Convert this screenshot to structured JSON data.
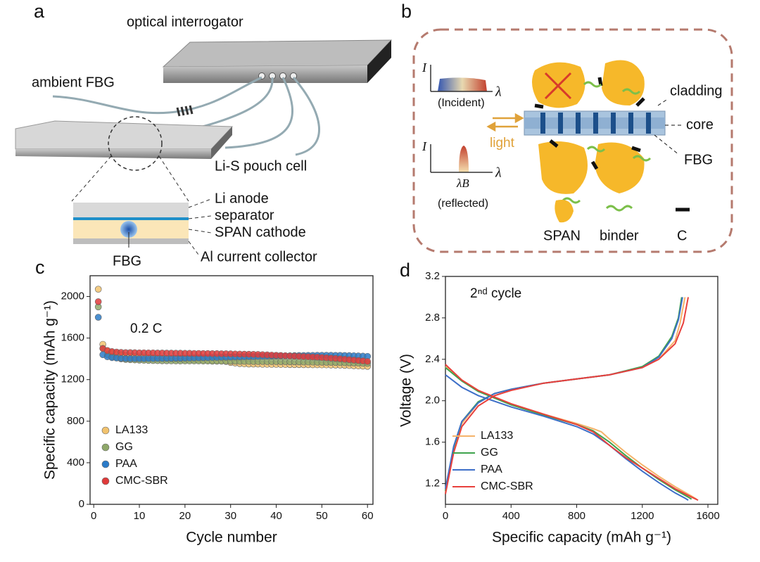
{
  "panel_a": {
    "label": "a",
    "interrogator": "optical interrogator",
    "ambient_fbg": "ambient FBG",
    "cell": "Li-S pouch cell",
    "layers": [
      "Li anode",
      "separator",
      "SPAN cathode",
      "Al current collector"
    ],
    "fbg": "FBG"
  },
  "panel_b": {
    "label": "b",
    "axis_i": "I",
    "axis_lambda": "λ",
    "incident": "(Incident)",
    "lambda_b": "λB",
    "reflected": "(reflected)",
    "light": "light",
    "cladding": "cladding",
    "core": "core",
    "fbg": "FBG",
    "legend": [
      "SPAN",
      "binder",
      "C"
    ]
  },
  "chart_data": [
    {
      "type": "scatter",
      "panel_label": "c",
      "annotation": "0.2 C",
      "x_label": "Cycle number",
      "y_label": "Specific capacity (mAh g⁻¹)",
      "xlim": [
        -0.8,
        61.2
      ],
      "ylim": [
        0,
        2200
      ],
      "xticks": [
        0,
        10,
        20,
        30,
        40,
        50,
        60
      ],
      "yticks": [
        0,
        400,
        800,
        1200,
        1600,
        2000
      ],
      "x": [
        1,
        2,
        3,
        4,
        5,
        6,
        7,
        8,
        9,
        10,
        11,
        12,
        13,
        14,
        15,
        16,
        17,
        18,
        19,
        20,
        21,
        22,
        23,
        24,
        25,
        26,
        27,
        28,
        29,
        30,
        31,
        32,
        33,
        34,
        35,
        36,
        37,
        38,
        39,
        40,
        41,
        42,
        43,
        44,
        45,
        46,
        47,
        48,
        49,
        50,
        51,
        52,
        53,
        54,
        55,
        56,
        57,
        58,
        59,
        60
      ],
      "series": [
        {
          "name": "LA133",
          "color": "#f2c36e",
          "values": [
            2070,
            1540,
            1480,
            1460,
            1450,
            1440,
            1430,
            1425,
            1420,
            1418,
            1415,
            1412,
            1410,
            1408,
            1405,
            1402,
            1400,
            1398,
            1396,
            1395,
            1393,
            1392,
            1390,
            1388,
            1386,
            1384,
            1382,
            1380,
            1375,
            1365,
            1360,
            1355,
            1352,
            1350,
            1350,
            1350,
            1348,
            1348,
            1347,
            1347,
            1346,
            1346,
            1345,
            1345,
            1345,
            1344,
            1344,
            1343,
            1343,
            1342,
            1342,
            1341,
            1340,
            1340,
            1338,
            1336,
            1334,
            1332,
            1330,
            1328
          ]
        },
        {
          "name": "GG",
          "color": "#8fa86a",
          "values": [
            1900,
            1500,
            1440,
            1420,
            1410,
            1400,
            1395,
            1392,
            1390,
            1388,
            1386,
            1385,
            1384,
            1383,
            1382,
            1382,
            1381,
            1380,
            1380,
            1380,
            1380,
            1380,
            1380,
            1379,
            1379,
            1378,
            1378,
            1378,
            1377,
            1377,
            1377,
            1376,
            1376,
            1376,
            1375,
            1375,
            1375,
            1374,
            1374,
            1374,
            1373,
            1373,
            1372,
            1372,
            1371,
            1370,
            1370,
            1369,
            1368,
            1368,
            1367,
            1366,
            1365,
            1364,
            1363,
            1362,
            1361,
            1360,
            1358,
            1356
          ]
        },
        {
          "name": "PAA",
          "color": "#2b7bc8",
          "values": [
            1800,
            1440,
            1420,
            1412,
            1408,
            1405,
            1403,
            1402,
            1402,
            1402,
            1402,
            1403,
            1403,
            1404,
            1404,
            1405,
            1405,
            1406,
            1406,
            1407,
            1408,
            1409,
            1410,
            1411,
            1412,
            1413,
            1414,
            1415,
            1416,
            1417,
            1418,
            1419,
            1420,
            1421,
            1422,
            1423,
            1424,
            1425,
            1426,
            1427,
            1428,
            1429,
            1430,
            1431,
            1432,
            1432,
            1433,
            1433,
            1434,
            1434,
            1434,
            1434,
            1433,
            1433,
            1432,
            1431,
            1430,
            1428,
            1426,
            1424
          ]
        },
        {
          "name": "CMC-SBR",
          "color": "#e03a3a",
          "values": [
            1950,
            1500,
            1480,
            1470,
            1465,
            1462,
            1460,
            1460,
            1459,
            1458,
            1458,
            1457,
            1457,
            1456,
            1456,
            1455,
            1455,
            1454,
            1454,
            1453,
            1453,
            1452,
            1452,
            1451,
            1451,
            1450,
            1450,
            1449,
            1449,
            1448,
            1447,
            1446,
            1445,
            1444,
            1443,
            1442,
            1440,
            1438,
            1436,
            1434,
            1432,
            1430,
            1428,
            1426,
            1424,
            1422,
            1420,
            1418,
            1416,
            1413,
            1410,
            1407,
            1404,
            1400,
            1396,
            1392,
            1388,
            1384,
            1380,
            1375
          ]
        }
      ]
    },
    {
      "type": "line",
      "panel_label": "d",
      "annotation": "2ⁿᵈ cycle",
      "x_label": "Specific capacity (mAh g⁻¹)",
      "y_label": "Voltage (V)",
      "xlim": [
        0,
        1660
      ],
      "ylim": [
        1.0,
        3.2
      ],
      "xticks": [
        0,
        400,
        800,
        1200,
        1600
      ],
      "yticks": [
        {
          "value": 1.2,
          "label": "1.2"
        },
        {
          "value": 1.6,
          "label": "1.6"
        },
        {
          "value": 2.0,
          "label": "2.0"
        },
        {
          "value": 2.4,
          "label": "2.4"
        },
        {
          "value": 2.8,
          "label": "2.8"
        },
        {
          "value": 3.2,
          "label": "3.2"
        }
      ],
      "series": [
        {
          "name": "LA133",
          "color": "#f5b36a",
          "x": [
            0,
            100,
            200,
            400,
            600,
            800,
            900,
            950,
            1000,
            1100,
            1200,
            1300,
            1400,
            1500,
            1530,
            null,
            0,
            50,
            100,
            200,
            300,
            400,
            600,
            800,
            1000,
            1200,
            1300,
            1400,
            1430,
            1460
          ],
          "values": [
            2.33,
            2.2,
            2.1,
            1.97,
            1.87,
            1.78,
            1.73,
            1.7,
            1.63,
            1.5,
            1.38,
            1.27,
            1.17,
            1.08,
            1.05,
            null,
            1.12,
            1.52,
            1.78,
            1.98,
            2.07,
            2.11,
            2.17,
            2.21,
            2.25,
            2.32,
            2.4,
            2.58,
            2.75,
            3.0
          ]
        },
        {
          "name": "GG",
          "color": "#3fa34d",
          "x": [
            0,
            100,
            200,
            400,
            600,
            800,
            900,
            1000,
            1100,
            1200,
            1300,
            1400,
            1480,
            1500,
            null,
            0,
            50,
            100,
            200,
            300,
            400,
            600,
            800,
            1000,
            1200,
            1300,
            1380,
            1420,
            1440
          ],
          "values": [
            2.32,
            2.19,
            2.09,
            1.96,
            1.86,
            1.77,
            1.71,
            1.6,
            1.47,
            1.35,
            1.24,
            1.14,
            1.07,
            1.05,
            null,
            1.13,
            1.55,
            1.8,
            1.99,
            2.07,
            2.11,
            2.17,
            2.21,
            2.25,
            2.33,
            2.43,
            2.62,
            2.8,
            3.0
          ]
        },
        {
          "name": "PAA",
          "color": "#3d6fc8",
          "x": [
            0,
            100,
            200,
            400,
            600,
            800,
            900,
            1000,
            1100,
            1200,
            1300,
            1400,
            1460,
            1480,
            null,
            0,
            50,
            100,
            200,
            300,
            400,
            600,
            800,
            1000,
            1200,
            1300,
            1380,
            1420,
            1445
          ],
          "values": [
            2.25,
            2.13,
            2.05,
            1.94,
            1.85,
            1.75,
            1.68,
            1.57,
            1.44,
            1.32,
            1.21,
            1.11,
            1.06,
            1.04,
            null,
            1.15,
            1.56,
            1.8,
            1.98,
            2.07,
            2.11,
            2.17,
            2.21,
            2.25,
            2.32,
            2.42,
            2.6,
            2.78,
            3.0
          ]
        },
        {
          "name": "CMC-SBR",
          "color": "#e8403c",
          "x": [
            0,
            100,
            200,
            400,
            600,
            800,
            900,
            1000,
            1100,
            1200,
            1300,
            1400,
            1500,
            1540,
            null,
            0,
            50,
            100,
            200,
            300,
            400,
            600,
            800,
            1000,
            1200,
            1300,
            1400,
            1450,
            1480
          ],
          "values": [
            2.35,
            2.2,
            2.1,
            1.97,
            1.87,
            1.77,
            1.7,
            1.57,
            1.45,
            1.35,
            1.25,
            1.15,
            1.07,
            1.04,
            null,
            1.1,
            1.5,
            1.75,
            1.95,
            2.05,
            2.1,
            2.17,
            2.21,
            2.25,
            2.32,
            2.4,
            2.55,
            2.75,
            3.0
          ]
        }
      ]
    }
  ]
}
